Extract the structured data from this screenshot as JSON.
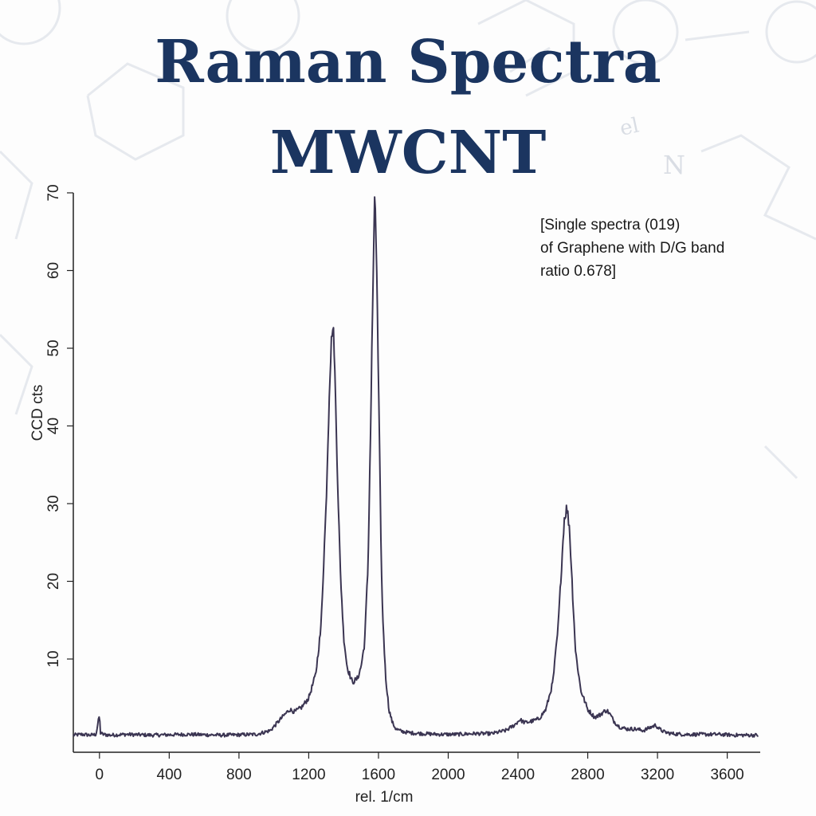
{
  "title": {
    "line1": "Raman Spectra",
    "line2": "MWCNT"
  },
  "background_text": {
    "el": "el",
    "n": "N"
  },
  "annotation": {
    "line1": "[Single spectra (019)",
    "line2": "of Graphene with D/G band",
    "line3": "ratio 0.678]"
  },
  "colors": {
    "title": "#1b3560",
    "line": "#3b3552",
    "axis": "#222222",
    "decor": "#e6e9ee"
  },
  "chart_data": {
    "type": "line",
    "title": "Raman Spectra MWCNT",
    "xlabel": "rel. 1/cm",
    "ylabel": "CCD cts",
    "xlim": [
      -150,
      3780
    ],
    "ylim": [
      -2,
      70
    ],
    "xticks": [
      0,
      400,
      800,
      1200,
      1600,
      2000,
      2400,
      2800,
      3200,
      3600
    ],
    "yticks": [
      10,
      20,
      30,
      40,
      50,
      60,
      70
    ],
    "xtick_labels": [
      "0",
      "400",
      "800",
      "1200",
      "1600",
      "2000",
      "2400",
      "2800",
      "3200",
      "3600"
    ],
    "ytick_labels": [
      "10",
      "20",
      "30",
      "40",
      "50",
      "60",
      "70"
    ],
    "grid": false,
    "series": [
      {
        "x": [
          -150,
          -100,
          -50,
          -20,
          0,
          5,
          20,
          60,
          150,
          300,
          500,
          700,
          900,
          980,
          1020,
          1060,
          1090,
          1120,
          1160,
          1200,
          1240,
          1270,
          1300,
          1320,
          1335,
          1345,
          1360,
          1380,
          1400,
          1420,
          1450,
          1480,
          1500,
          1520,
          1540,
          1555,
          1570,
          1580,
          1590,
          1605,
          1620,
          1640,
          1660,
          1680,
          1700,
          1730,
          1780,
          1850,
          1950,
          2050,
          2150,
          2250,
          2330,
          2380,
          2410,
          2440,
          2480,
          2520,
          2560,
          2600,
          2630,
          2650,
          2665,
          2680,
          2695,
          2710,
          2730,
          2760,
          2800,
          2840,
          2870,
          2890,
          2910,
          2930,
          2950,
          2980,
          3020,
          3070,
          3120,
          3160,
          3190,
          3210,
          3240,
          3280,
          3350,
          3450,
          3550,
          3650,
          3780
        ],
        "y": [
          0.2,
          0.3,
          0.2,
          0.3,
          2.8,
          0.5,
          0.3,
          0.2,
          0.3,
          0.2,
          0.3,
          0.2,
          0.3,
          0.8,
          1.8,
          2.8,
          3.5,
          3.2,
          3.8,
          5.0,
          8.0,
          14.0,
          30.0,
          46.0,
          53.0,
          51.0,
          38.0,
          22.0,
          13.0,
          9.0,
          7.0,
          7.5,
          9.0,
          12.0,
          22.0,
          40.0,
          60.0,
          70.0,
          60.0,
          38.0,
          18.0,
          8.0,
          3.5,
          1.8,
          1.0,
          0.7,
          0.5,
          0.4,
          0.3,
          0.3,
          0.4,
          0.4,
          0.8,
          1.5,
          2.2,
          1.8,
          2.0,
          2.3,
          3.5,
          7.0,
          14.0,
          22.0,
          28.0,
          29.5,
          27.0,
          20.0,
          11.0,
          6.0,
          3.5,
          2.5,
          2.8,
          3.2,
          3.4,
          2.8,
          2.0,
          1.3,
          1.0,
          1.0,
          0.8,
          1.2,
          1.5,
          1.0,
          0.6,
          0.4,
          0.3,
          0.3,
          0.3,
          0.2,
          0.2
        ]
      }
    ]
  }
}
